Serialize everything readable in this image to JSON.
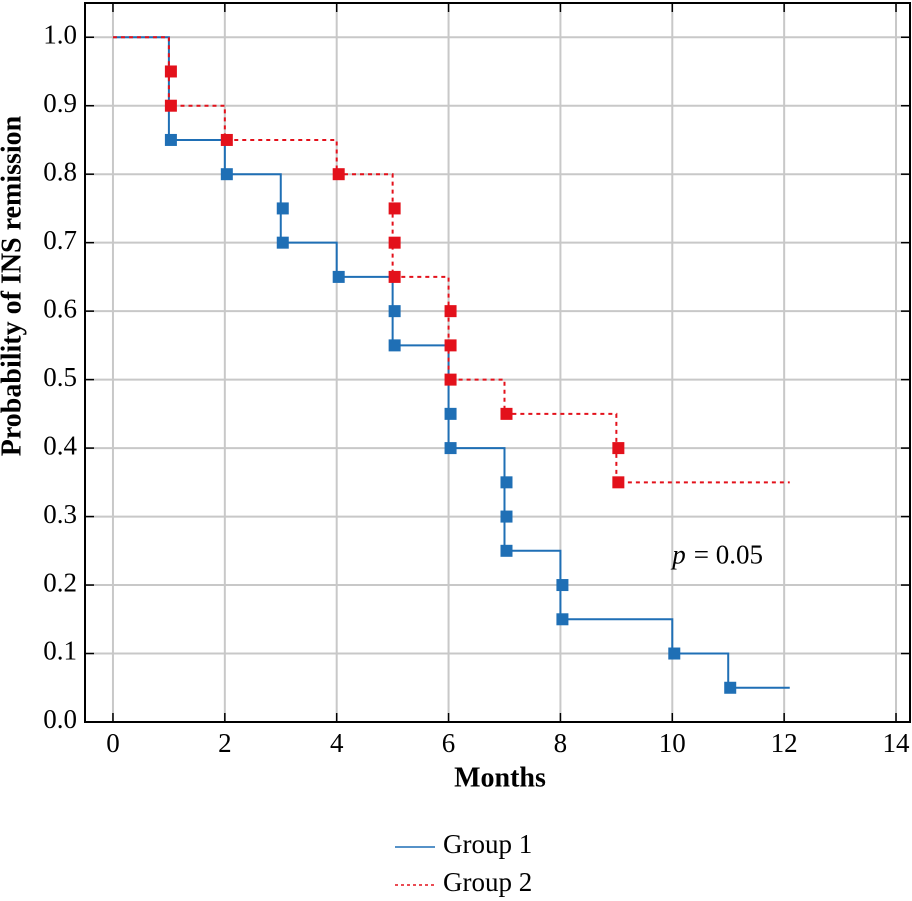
{
  "chart_data": {
    "type": "step",
    "x_label": "Months",
    "y_label": "Probability of INS remission",
    "xlim": [
      -0.5,
      14.25
    ],
    "ylim": [
      0,
      1.05
    ],
    "xticks": [
      0,
      2,
      4,
      6,
      8,
      10,
      12,
      14
    ],
    "yticks": [
      {
        "value": 0,
        "label": "0.0"
      },
      0.1,
      0.2,
      0.3,
      0.4,
      0.5,
      0.6,
      0.7,
      0.8,
      0.9,
      {
        "value": 1,
        "label": "1.0"
      }
    ],
    "grid": true,
    "annotation": {
      "symbol": "p",
      "text": "= 0.05",
      "x": 10,
      "y": 0.24
    },
    "series": [
      {
        "name": "Group 1",
        "color": "#1f6fb5",
        "dash": false,
        "x": [
          0,
          1,
          1,
          2,
          2,
          3,
          3,
          4,
          4,
          5,
          5,
          6,
          6,
          7,
          7,
          8,
          8,
          10,
          10,
          11,
          11,
          12.1
        ],
        "values": [
          1,
          1,
          0.85,
          0.85,
          0.8,
          0.8,
          0.7,
          0.7,
          0.65,
          0.65,
          0.55,
          0.55,
          0.4,
          0.4,
          0.25,
          0.25,
          0.15,
          0.15,
          0.1,
          0.1,
          0.05,
          0.05
        ],
        "marker_x": [
          1,
          2,
          3,
          3,
          4,
          5,
          5,
          6,
          6,
          7,
          7,
          7,
          8,
          8,
          10,
          11
        ],
        "marker_values": [
          0.85,
          0.8,
          0.75,
          0.7,
          0.65,
          0.6,
          0.55,
          0.45,
          0.4,
          0.35,
          0.3,
          0.25,
          0.2,
          0.15,
          0.1,
          0.05
        ]
      },
      {
        "name": "Group 2",
        "color": "#e3111b",
        "dash": true,
        "x": [
          0,
          1,
          1,
          2,
          2,
          4,
          4,
          5,
          5,
          6,
          6,
          7,
          7,
          9,
          9,
          12.1
        ],
        "values": [
          1,
          1,
          0.9,
          0.9,
          0.85,
          0.85,
          0.8,
          0.8,
          0.65,
          0.65,
          0.5,
          0.5,
          0.45,
          0.45,
          0.35,
          0.35
        ],
        "marker_x": [
          1,
          1,
          2,
          4,
          5,
          5,
          5,
          6,
          6,
          6,
          7,
          9,
          9
        ],
        "marker_values": [
          0.95,
          0.9,
          0.85,
          0.8,
          0.75,
          0.7,
          0.65,
          0.6,
          0.55,
          0.5,
          0.45,
          0.4,
          0.35
        ]
      }
    ]
  }
}
